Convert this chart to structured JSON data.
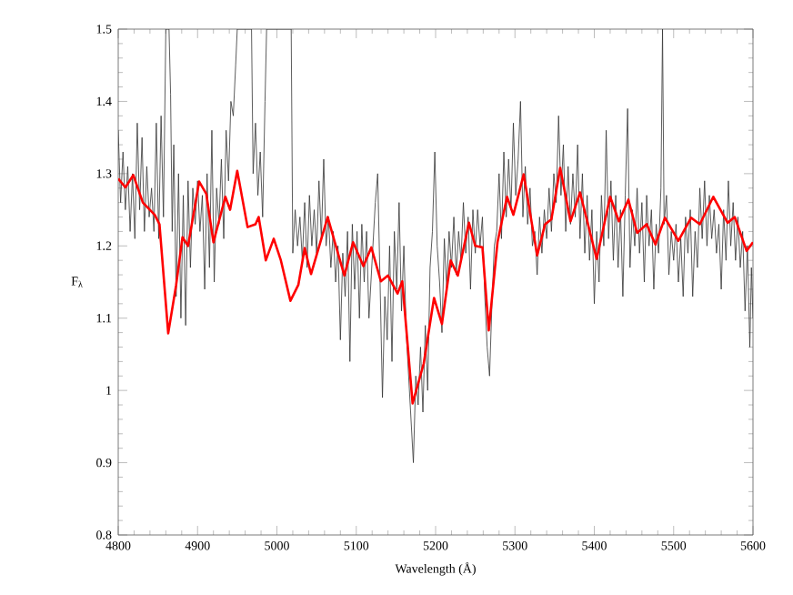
{
  "chart_data": {
    "type": "line",
    "xlabel": "Wavelength (Å)",
    "ylabel": "F$_{λ}$",
    "xlim": [
      4800,
      5600
    ],
    "ylim": [
      0.8,
      1.5
    ],
    "xticks": [
      4800,
      4900,
      5000,
      5100,
      5200,
      5300,
      5400,
      5500,
      5600
    ],
    "yticks": [
      0.8,
      0.9,
      1,
      1.1,
      1.2,
      1.3,
      1.4,
      1.5
    ],
    "marker": "none",
    "line_style": "solid",
    "series": [
      {
        "color": "#333333",
        "x": [
          4800,
          4803,
          4806,
          4809,
          4812,
          4815,
          4818,
          4821,
          4824,
          4827,
          4830,
          4833,
          4836,
          4839,
          4842,
          4845,
          4848,
          4851,
          4854,
          4857,
          4860,
          4864,
          4866,
          4868,
          4870,
          4873,
          4876,
          4879,
          4882,
          4885,
          4888,
          4891,
          4894,
          4897,
          4900,
          4903,
          4906,
          4909,
          4912,
          4915,
          4918,
          4921,
          4924,
          4927,
          4930,
          4933,
          4936,
          4939,
          4942,
          4945,
          4948,
          4950,
          4968,
          4970,
          4973,
          4976,
          4979,
          4982,
          4985,
          4987,
          5018,
          5020,
          5023,
          5026,
          5029,
          5032,
          5035,
          5038,
          5041,
          5044,
          5047,
          5050,
          5053,
          5056,
          5059,
          5062,
          5065,
          5068,
          5071,
          5074,
          5077,
          5080,
          5083,
          5086,
          5089,
          5092,
          5095,
          5098,
          5101,
          5104,
          5107,
          5110,
          5113,
          5116,
          5120,
          5124,
          5127,
          5130,
          5133,
          5136,
          5139,
          5142,
          5145,
          5148,
          5151,
          5154,
          5157,
          5160,
          5163,
          5166,
          5169,
          5172,
          5175,
          5178,
          5181,
          5184,
          5187,
          5190,
          5193,
          5196,
          5199,
          5202,
          5205,
          5208,
          5211,
          5214,
          5217,
          5220,
          5223,
          5226,
          5229,
          5232,
          5235,
          5238,
          5241,
          5244,
          5247,
          5250,
          5253,
          5256,
          5259,
          5262,
          5265,
          5268,
          5271,
          5274,
          5277,
          5280,
          5283,
          5286,
          5289,
          5292,
          5295,
          5298,
          5301,
          5304,
          5307,
          5310,
          5313,
          5316,
          5319,
          5322,
          5325,
          5328,
          5331,
          5334,
          5337,
          5340,
          5343,
          5346,
          5349,
          5352,
          5355,
          5358,
          5361,
          5364,
          5367,
          5370,
          5373,
          5376,
          5379,
          5382,
          5385,
          5388,
          5391,
          5394,
          5397,
          5400,
          5403,
          5406,
          5409,
          5412,
          5415,
          5418,
          5421,
          5424,
          5427,
          5430,
          5433,
          5436,
          5439,
          5442,
          5445,
          5448,
          5451,
          5454,
          5457,
          5460,
          5463,
          5466,
          5469,
          5472,
          5475,
          5478,
          5481,
          5484,
          5486,
          5488,
          5491,
          5494,
          5497,
          5500,
          5503,
          5506,
          5509,
          5512,
          5515,
          5518,
          5521,
          5524,
          5527,
          5530,
          5533,
          5536,
          5539,
          5542,
          5545,
          5548,
          5551,
          5554,
          5557,
          5560,
          5563,
          5566,
          5569,
          5572,
          5575,
          5578,
          5581,
          5584,
          5587,
          5590,
          5593,
          5596,
          5598,
          5600
        ],
        "values": [
          1.36,
          1.26,
          1.33,
          1.25,
          1.31,
          1.22,
          1.3,
          1.21,
          1.37,
          1.25,
          1.35,
          1.22,
          1.31,
          1.24,
          1.28,
          1.22,
          1.37,
          1.21,
          1.38,
          1.24,
          1.5,
          1.5,
          1.41,
          1.22,
          1.34,
          1.13,
          1.3,
          1.1,
          1.27,
          1.09,
          1.29,
          1.17,
          1.28,
          1.23,
          1.29,
          1.22,
          1.27,
          1.14,
          1.3,
          1.17,
          1.36,
          1.15,
          1.28,
          1.23,
          1.32,
          1.21,
          1.36,
          1.29,
          1.4,
          1.38,
          1.45,
          1.5,
          1.5,
          1.3,
          1.37,
          1.27,
          1.33,
          1.24,
          1.4,
          1.5,
          1.5,
          1.19,
          1.25,
          1.2,
          1.24,
          1.18,
          1.26,
          1.17,
          1.27,
          1.2,
          1.25,
          1.19,
          1.29,
          1.21,
          1.32,
          1.2,
          1.24,
          1.17,
          1.22,
          1.15,
          1.2,
          1.07,
          1.19,
          1.13,
          1.22,
          1.04,
          1.23,
          1.14,
          1.22,
          1.1,
          1.23,
          1.15,
          1.22,
          1.1,
          1.18,
          1.26,
          1.3,
          1.15,
          0.99,
          1.13,
          1.07,
          1.2,
          1.04,
          1.22,
          1.14,
          1.26,
          1.11,
          1.2,
          1.08,
          1.02,
          0.96,
          0.9,
          1.02,
          0.98,
          1.06,
          0.97,
          1.09,
          1.0,
          1.17,
          1.22,
          1.33,
          1.2,
          1.15,
          1.08,
          1.21,
          1.14,
          1.22,
          1.17,
          1.24,
          1.16,
          1.22,
          1.18,
          1.26,
          1.19,
          1.24,
          1.14,
          1.25,
          1.19,
          1.25,
          1.2,
          1.24,
          1.13,
          1.06,
          1.02,
          1.12,
          1.2,
          1.22,
          1.3,
          1.21,
          1.33,
          1.24,
          1.32,
          1.25,
          1.37,
          1.27,
          1.32,
          1.4,
          1.24,
          1.31,
          1.23,
          1.28,
          1.2,
          1.22,
          1.16,
          1.24,
          1.19,
          1.25,
          1.21,
          1.28,
          1.22,
          1.3,
          1.26,
          1.38,
          1.27,
          1.34,
          1.22,
          1.31,
          1.23,
          1.3,
          1.24,
          1.34,
          1.21,
          1.3,
          1.19,
          1.27,
          1.18,
          1.25,
          1.12,
          1.22,
          1.15,
          1.27,
          1.2,
          1.36,
          1.21,
          1.29,
          1.18,
          1.27,
          1.17,
          1.25,
          1.13,
          1.27,
          1.39,
          1.17,
          1.25,
          1.2,
          1.28,
          1.19,
          1.26,
          1.15,
          1.27,
          1.2,
          1.25,
          1.14,
          1.23,
          1.19,
          1.28,
          1.5,
          1.23,
          1.27,
          1.16,
          1.22,
          1.18,
          1.23,
          1.15,
          1.21,
          1.13,
          1.24,
          1.19,
          1.25,
          1.13,
          1.22,
          1.17,
          1.28,
          1.21,
          1.29,
          1.2,
          1.27,
          1.21,
          1.25,
          1.19,
          1.23,
          1.14,
          1.25,
          1.18,
          1.29,
          1.2,
          1.26,
          1.18,
          1.24,
          1.17,
          1.22,
          1.11,
          1.2,
          1.06,
          1.17,
          1.1
        ]
      },
      {
        "color": "#ff0000",
        "x": [
          4800,
          4809,
          4819,
          4831,
          4846,
          4852,
          4863,
          4873,
          4881,
          4888,
          4902,
          4911,
          4920,
          4935,
          4941,
          4950,
          4963,
          4973,
          4977,
          4986,
          4996,
          5005,
          5017,
          5027,
          5035,
          5043,
          5064,
          5073,
          5085,
          5096,
          5109,
          5119,
          5131,
          5140,
          5152,
          5158,
          5171,
          5185,
          5198,
          5208,
          5219,
          5228,
          5242,
          5250,
          5259,
          5267,
          5278,
          5290,
          5298,
          5311,
          5328,
          5338,
          5346,
          5357,
          5370,
          5382,
          5403,
          5420,
          5431,
          5443,
          5454,
          5466,
          5477,
          5489,
          5506,
          5522,
          5533,
          5550,
          5568,
          5577,
          5592,
          5600
        ],
        "values": [
          1.293,
          1.281,
          1.298,
          1.26,
          1.243,
          1.23,
          1.079,
          1.146,
          1.212,
          1.2,
          1.289,
          1.272,
          1.205,
          1.268,
          1.25,
          1.304,
          1.226,
          1.23,
          1.24,
          1.18,
          1.21,
          1.18,
          1.124,
          1.146,
          1.197,
          1.161,
          1.24,
          1.205,
          1.159,
          1.205,
          1.172,
          1.198,
          1.151,
          1.159,
          1.134,
          1.151,
          0.982,
          1.037,
          1.128,
          1.092,
          1.18,
          1.159,
          1.232,
          1.2,
          1.198,
          1.083,
          1.205,
          1.268,
          1.243,
          1.299,
          1.187,
          1.23,
          1.237,
          1.308,
          1.234,
          1.274,
          1.182,
          1.268,
          1.234,
          1.264,
          1.218,
          1.23,
          1.202,
          1.239,
          1.207,
          1.239,
          1.23,
          1.268,
          1.232,
          1.24,
          1.193,
          1.205
        ]
      }
    ]
  }
}
